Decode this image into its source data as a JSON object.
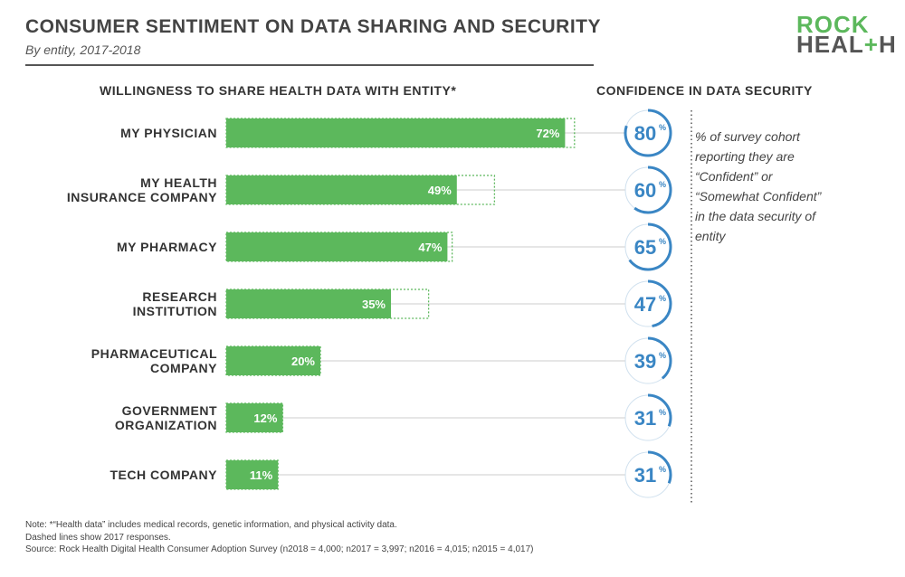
{
  "header": {
    "title": "CONSUMER SENTIMENT ON DATA SHARING AND SECURITY",
    "subtitle": "By entity, 2017-2018"
  },
  "logo": {
    "line1": "ROCK",
    "line2_a": "HEAL",
    "line2_plus": "+",
    "line2_b": "H"
  },
  "sections": {
    "left_heading": "WILLINGNESS TO SHARE HEALTH DATA WITH ENTITY*",
    "right_heading": "CONFIDENCE IN DATA SECURITY"
  },
  "side_note": "% of survey cohort reporting they are “Confident” or “Somewhat Confident” in the data security of entity",
  "notes": {
    "line1": "Note: *“Health data” includes medical records, genetic information, and physical activity data.",
    "line2": "Dashed lines show 2017 responses.",
    "line3_prefix": "Source: Rock Health Digital Health Consumer Adoption Survey (n",
    "line3": "Source: Rock Health Digital Health Consumer Adoption Survey (n2018 = 4,000; n2017 = 3,997; n2016 = 4,015; n2015 = 4,017)"
  },
  "colors": {
    "bar": "#5cb85c",
    "dashed": "#5cb85c",
    "circle": "#3a86c4",
    "circle_track": "#cfe0ee",
    "connector": "#cccccc"
  },
  "chart_data": {
    "type": "bar",
    "orientation": "horizontal",
    "title": "WILLINGNESS TO SHARE HEALTH DATA WITH ENTITY*",
    "categories": [
      [
        "MY PHYSICIAN"
      ],
      [
        "MY HEALTH",
        "INSURANCE COMPANY"
      ],
      [
        "MY PHARMACY"
      ],
      [
        "RESEARCH",
        "INSTITUTION"
      ],
      [
        "PHARMACEUTICAL",
        "COMPANY"
      ],
      [
        "GOVERNMENT",
        "ORGANIZATION"
      ],
      [
        "TECH COMPANY"
      ]
    ],
    "series": [
      {
        "name": "2018",
        "values": [
          72,
          49,
          47,
          35,
          20,
          12,
          11
        ],
        "labels": [
          "72%",
          "49%",
          "47%",
          "35%",
          "20%",
          "12%",
          "11%"
        ]
      },
      {
        "name": "2017 (dashed)",
        "values": [
          74,
          57,
          48,
          43,
          20,
          12,
          11
        ]
      }
    ],
    "confidence": {
      "title": "CONFIDENCE IN DATA SECURITY",
      "values": [
        80,
        60,
        65,
        47,
        39,
        31,
        31
      ],
      "labels": [
        "80",
        "60",
        "65",
        "47",
        "39",
        "31",
        "31"
      ],
      "unit": "%"
    },
    "xlim": [
      0,
      100
    ]
  }
}
